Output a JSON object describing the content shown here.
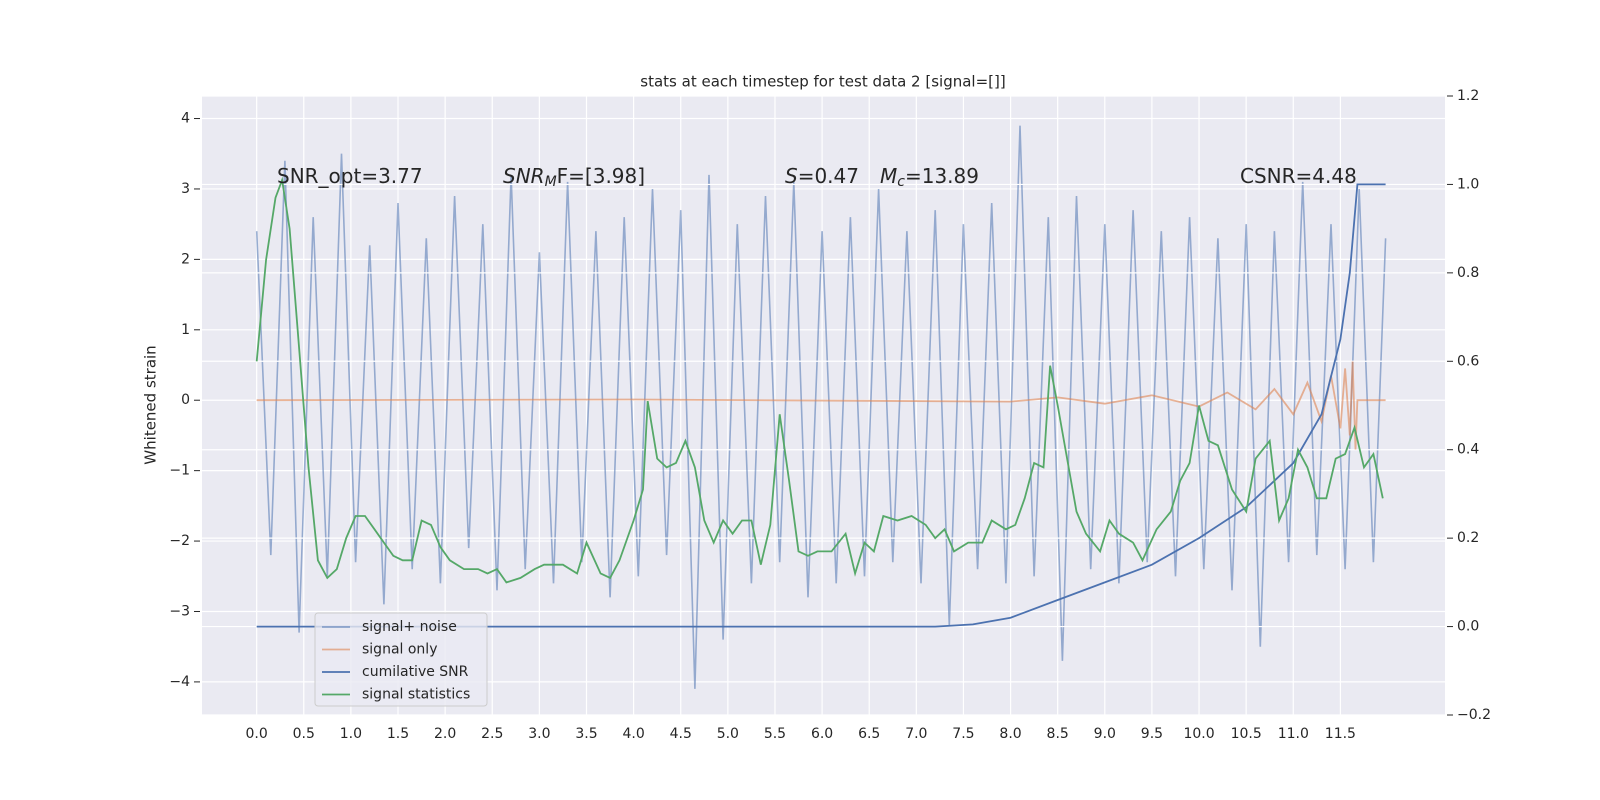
{
  "chart_data": {
    "type": "line",
    "title": "stats at each timestep for test data 2 [signal=[]]",
    "ylabel": "Whitened strain",
    "xlim": [
      -0.58,
      12.61
    ],
    "ylim": [
      -4.47,
      4.32
    ],
    "y2lim": [
      -0.2,
      1.2
    ],
    "xticks": [
      {
        "value": 0,
        "label": "0.0"
      },
      0.5,
      {
        "value": 1,
        "label": "1.0"
      },
      1.5,
      {
        "value": 2,
        "label": "2.0"
      },
      2.5,
      {
        "value": 3,
        "label": "3.0"
      },
      3.5,
      {
        "value": 4,
        "label": "4.0"
      },
      4.5,
      {
        "value": 5,
        "label": "5.0"
      },
      5.5,
      {
        "value": 6,
        "label": "6.0"
      },
      6.5,
      {
        "value": 7,
        "label": "7.0"
      },
      7.5,
      {
        "value": 8,
        "label": "8.0"
      },
      8.5,
      {
        "value": 9,
        "label": "9.0"
      },
      9.5,
      {
        "value": 10,
        "label": "10.0"
      },
      10.5,
      {
        "value": 11,
        "label": "11.0"
      },
      11.5
    ],
    "yticks": [
      {
        "value": -4,
        "label": "−4"
      },
      {
        "value": -3,
        "label": "−3"
      },
      {
        "value": -2,
        "label": "−2"
      },
      {
        "value": -1,
        "label": "−1"
      },
      0,
      1,
      2,
      3,
      4
    ],
    "y2ticks": [
      {
        "value": -0.2,
        "label": "−0.2"
      },
      {
        "value": 0,
        "label": "0.0"
      },
      0.2,
      0.4,
      0.6,
      0.8,
      {
        "value": 1,
        "label": "1.0"
      },
      1.2
    ],
    "grid": true,
    "legend": "lower left",
    "annotations": [
      {
        "parts": [
          "SNR_opt=3.77"
        ]
      },
      {
        "parts": [
          "SNR",
          "M",
          "F=[3.98]"
        ]
      },
      {
        "parts": [
          "S",
          "=0.47"
        ]
      },
      {
        "parts": [
          "M",
          "c",
          "=13.89"
        ]
      },
      {
        "parts": [
          "CSNR=4.48"
        ]
      }
    ],
    "series": [
      {
        "name": "signal+ noise",
        "color": "#4c72b0",
        "opacity": 0.55,
        "axis": "y",
        "x": [
          0,
          0.15,
          0.3,
          0.45,
          0.6,
          0.75,
          0.9,
          1.05,
          1.2,
          1.35,
          1.5,
          1.65,
          1.8,
          1.95,
          2.1,
          2.25,
          2.4,
          2.55,
          2.7,
          2.85,
          3,
          3.15,
          3.3,
          3.45,
          3.6,
          3.75,
          3.9,
          4.05,
          4.2,
          4.35,
          4.5,
          4.65,
          4.8,
          4.95,
          5.1,
          5.25,
          5.4,
          5.55,
          5.7,
          5.85,
          6,
          6.15,
          6.3,
          6.45,
          6.6,
          6.75,
          6.9,
          7.05,
          7.2,
          7.35,
          7.5,
          7.65,
          7.8,
          7.95,
          8.1,
          8.25,
          8.4,
          8.55,
          8.7,
          8.85,
          9,
          9.15,
          9.3,
          9.45,
          9.6,
          9.75,
          9.9,
          10.05,
          10.2,
          10.35,
          10.5,
          10.65,
          10.8,
          10.95,
          11.1,
          11.25,
          11.4,
          11.55,
          11.7,
          11.85,
          11.98
        ],
        "values": [
          2.4,
          -2.2,
          3.4,
          -3.3,
          2.6,
          -2.5,
          3.5,
          -2.3,
          2.2,
          -2.9,
          2.8,
          -2.4,
          2.3,
          -2.6,
          2.9,
          -2.1,
          2.5,
          -2.7,
          3.2,
          -2.4,
          2.1,
          -2.6,
          3.1,
          -2.3,
          2.4,
          -2.8,
          2.6,
          -2.5,
          3.0,
          -2.2,
          2.7,
          -4.1,
          3.2,
          -3.4,
          2.5,
          -2.6,
          2.9,
          -2.3,
          3.1,
          -2.8,
          2.4,
          -2.6,
          2.6,
          -2.5,
          3.0,
          -2.3,
          2.4,
          -2.6,
          2.7,
          -3.2,
          2.5,
          -2.4,
          2.8,
          -2.6,
          3.9,
          -2.5,
          2.6,
          -3.7,
          2.9,
          -2.4,
          2.5,
          -2.6,
          2.7,
          -2.3,
          2.4,
          -2.5,
          2.6,
          -2.4,
          2.3,
          -2.7,
          2.5,
          -3.5,
          2.4,
          -2.3,
          3.1,
          -2.2,
          2.5,
          -2.4,
          3.0,
          -2.3,
          2.3
        ]
      },
      {
        "name": "signal only",
        "color": "#dd8452",
        "opacity": 0.6,
        "axis": "y",
        "x": [
          0,
          4,
          8,
          8.5,
          9,
          9.5,
          10,
          10.3,
          10.6,
          10.8,
          11,
          11.15,
          11.3,
          11.4,
          11.5,
          11.55,
          11.6,
          11.63,
          11.66,
          11.68,
          11.98
        ],
        "values": [
          0,
          0.01,
          -0.02,
          0.04,
          -0.05,
          0.07,
          -0.09,
          0.11,
          -0.13,
          0.16,
          -0.2,
          0.25,
          -0.3,
          0.35,
          -0.4,
          0.45,
          -0.5,
          0.55,
          -0.7,
          0,
          0
        ]
      },
      {
        "name": "cumilative SNR",
        "color": "#4c72b0",
        "opacity": 1,
        "axis": "y2",
        "x": [
          0,
          7.2,
          7.6,
          8.0,
          8.5,
          9.0,
          9.5,
          10.0,
          10.5,
          11.0,
          11.3,
          11.5,
          11.6,
          11.68,
          11.98
        ],
        "values": [
          0,
          0,
          0.005,
          0.02,
          0.06,
          0.1,
          0.14,
          0.2,
          0.27,
          0.37,
          0.48,
          0.65,
          0.8,
          1.0,
          1.0
        ]
      },
      {
        "name": "signal statistics",
        "color": "#55a868",
        "opacity": 1,
        "axis": "y2",
        "x": [
          0,
          0.1,
          0.2,
          0.27,
          0.35,
          0.45,
          0.55,
          0.65,
          0.75,
          0.85,
          0.95,
          1.05,
          1.15,
          1.25,
          1.35,
          1.45,
          1.55,
          1.65,
          1.75,
          1.85,
          1.95,
          2.05,
          2.2,
          2.35,
          2.45,
          2.55,
          2.65,
          2.8,
          2.95,
          3.05,
          3.25,
          3.4,
          3.5,
          3.65,
          3.75,
          3.85,
          4.0,
          4.1,
          4.15,
          4.25,
          4.35,
          4.45,
          4.55,
          4.65,
          4.75,
          4.85,
          4.95,
          5.05,
          5.15,
          5.25,
          5.35,
          5.45,
          5.55,
          5.65,
          5.75,
          5.85,
          5.95,
          6.1,
          6.25,
          6.35,
          6.45,
          6.55,
          6.65,
          6.8,
          6.95,
          7.1,
          7.2,
          7.3,
          7.4,
          7.55,
          7.7,
          7.8,
          7.95,
          8.05,
          8.15,
          8.25,
          8.35,
          8.42,
          8.5,
          8.6,
          8.7,
          8.8,
          8.95,
          9.05,
          9.15,
          9.3,
          9.4,
          9.55,
          9.7,
          9.8,
          9.9,
          10.0,
          10.1,
          10.2,
          10.35,
          10.5,
          10.6,
          10.75,
          10.85,
          10.95,
          11.05,
          11.15,
          11.25,
          11.35,
          11.45,
          11.55,
          11.65,
          11.75,
          11.85,
          11.95
        ],
        "values": [
          0.6,
          0.83,
          0.97,
          1.01,
          0.9,
          0.63,
          0.36,
          0.15,
          0.11,
          0.13,
          0.2,
          0.25,
          0.25,
          0.22,
          0.19,
          0.16,
          0.15,
          0.15,
          0.24,
          0.23,
          0.18,
          0.15,
          0.13,
          0.13,
          0.12,
          0.13,
          0.1,
          0.11,
          0.13,
          0.14,
          0.14,
          0.12,
          0.19,
          0.12,
          0.11,
          0.15,
          0.24,
          0.31,
          0.51,
          0.38,
          0.36,
          0.37,
          0.42,
          0.36,
          0.24,
          0.19,
          0.24,
          0.21,
          0.24,
          0.24,
          0.14,
          0.23,
          0.48,
          0.33,
          0.17,
          0.16,
          0.17,
          0.17,
          0.21,
          0.12,
          0.19,
          0.17,
          0.25,
          0.24,
          0.25,
          0.23,
          0.2,
          0.22,
          0.17,
          0.19,
          0.19,
          0.24,
          0.22,
          0.23,
          0.29,
          0.37,
          0.36,
          0.59,
          0.5,
          0.38,
          0.26,
          0.21,
          0.17,
          0.24,
          0.21,
          0.19,
          0.15,
          0.22,
          0.26,
          0.33,
          0.37,
          0.5,
          0.42,
          0.41,
          0.31,
          0.26,
          0.38,
          0.42,
          0.24,
          0.29,
          0.4,
          0.36,
          0.29,
          0.29,
          0.38,
          0.39,
          0.45,
          0.36,
          0.39,
          0.29
        ]
      }
    ]
  }
}
